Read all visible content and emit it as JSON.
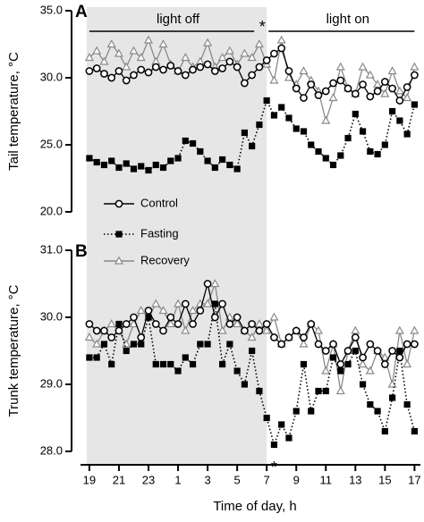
{
  "chart_data": [
    {
      "type": "line",
      "panel": "A",
      "ylabel": "Tail temperature, °C",
      "dark_period": {
        "label": "light off",
        "x": [
          19,
          31
        ]
      },
      "light_period": {
        "label": "light on",
        "x": [
          31,
          41
        ]
      },
      "annotations": [
        {
          "text": "*",
          "x": 30.7,
          "y": 34
        }
      ],
      "xlim": [
        18.4,
        41.4
      ],
      "ylim": [
        20,
        35
      ],
      "yticks": [
        {
          "value": 20,
          "label": "20.0"
        },
        {
          "value": 25,
          "label": "25.0"
        },
        {
          "value": 30,
          "label": "30.0"
        },
        {
          "value": 35,
          "label": "35.0"
        }
      ],
      "legend": "lower-left",
      "x": [
        19,
        19.5,
        20,
        20.5,
        21,
        21.5,
        22,
        22.5,
        23,
        23.5,
        24,
        24.5,
        25,
        25.5,
        26,
        26.5,
        27,
        27.5,
        28,
        28.5,
        29,
        29.5,
        30,
        30.5,
        31,
        31.5,
        32,
        32.5,
        33,
        33.5,
        34,
        34.5,
        35,
        35.5,
        36,
        36.5,
        37,
        37.5,
        38,
        38.5,
        39,
        39.5,
        40,
        40.5,
        41
      ],
      "series": [
        {
          "name": "Recovery",
          "color": "#8a8a8a",
          "marker": "triangle",
          "line": "solid",
          "values": [
            31.5,
            32.0,
            31.2,
            32.5,
            31.8,
            30.8,
            32.0,
            31.5,
            32.8,
            31.2,
            32.5,
            31.0,
            30.5,
            31.5,
            30.8,
            31.2,
            32.6,
            30.8,
            31.5,
            32.0,
            31.0,
            31.8,
            31.5,
            32.5,
            31.0,
            29.8,
            32.8,
            30.0,
            29.5,
            30.5,
            29.8,
            29.0,
            26.8,
            28.5,
            30.8,
            29.2,
            28.8,
            30.8,
            30.2,
            29.5,
            28.8,
            30.5,
            29.0,
            28.5,
            30.8
          ]
        },
        {
          "name": "Fasting",
          "color": "#000000",
          "marker": "square",
          "line": "dotted",
          "values": [
            24.0,
            23.7,
            23.5,
            23.8,
            23.3,
            23.6,
            23.2,
            23.4,
            23.1,
            23.5,
            23.3,
            23.8,
            24.0,
            25.3,
            25.1,
            24.5,
            23.8,
            23.3,
            23.9,
            23.5,
            23.2,
            25.9,
            24.9,
            26.5,
            28.3,
            27.2,
            27.8,
            27.0,
            26.2,
            26.0,
            25.0,
            24.5,
            24.0,
            23.5,
            24.2,
            25.5,
            27.3,
            26.0,
            24.5,
            24.3,
            25.0,
            27.5,
            26.8,
            25.8,
            28.0
          ]
        },
        {
          "name": "Control",
          "color": "#000000",
          "marker": "circle",
          "line": "solid",
          "values": [
            30.5,
            30.7,
            30.3,
            30.0,
            30.5,
            29.8,
            30.2,
            30.6,
            30.4,
            30.8,
            30.6,
            30.9,
            30.5,
            30.2,
            30.6,
            30.8,
            31.0,
            30.5,
            30.7,
            31.2,
            30.8,
            29.6,
            30.2,
            30.8,
            31.3,
            31.8,
            32.2,
            30.5,
            29.2,
            28.5,
            29.5,
            28.7,
            29.0,
            29.6,
            29.8,
            29.2,
            28.8,
            29.5,
            28.6,
            29.0,
            29.7,
            29.2,
            28.3,
            29.3,
            30.2
          ]
        }
      ]
    },
    {
      "type": "line",
      "panel": "B",
      "ylabel": "Trunk temperature, °C",
      "xlabel": "Time of day, h",
      "dark_period": {
        "x": [
          19,
          31
        ]
      },
      "annotations": [
        {
          "text": "*",
          "x": [
            30.1,
            32.9
          ],
          "y": 27.8
        }
      ],
      "xlim": [
        18.4,
        41.4
      ],
      "ylim": [
        28,
        31
      ],
      "xticks": [
        19,
        21,
        23,
        {
          "value": 25,
          "label": "1"
        },
        {
          "value": 27,
          "label": "3"
        },
        {
          "value": 29,
          "label": "5"
        },
        {
          "value": 31,
          "label": "7"
        },
        {
          "value": 33,
          "label": "9"
        },
        {
          "value": 35,
          "label": "11"
        },
        {
          "value": 37,
          "label": "13"
        },
        {
          "value": 39,
          "label": "15"
        },
        {
          "value": 41,
          "label": "17"
        }
      ],
      "yticks": [
        {
          "value": 28,
          "label": "28.0"
        },
        {
          "value": 29,
          "label": "29.0"
        },
        {
          "value": 30,
          "label": "30.0"
        },
        {
          "value": 31,
          "label": "31.0"
        }
      ],
      "x": [
        19,
        19.5,
        20,
        20.5,
        21,
        21.5,
        22,
        22.5,
        23,
        23.5,
        24,
        24.5,
        25,
        25.5,
        26,
        26.5,
        27,
        27.5,
        28,
        28.5,
        29,
        29.5,
        30,
        30.5,
        31,
        31.5,
        32,
        32.5,
        33,
        33.5,
        34,
        34.5,
        35,
        35.5,
        36,
        36.5,
        37,
        37.5,
        38,
        38.5,
        39,
        39.5,
        40,
        40.5,
        41
      ],
      "series": [
        {
          "color": "#8a8a8a",
          "marker": "triangle",
          "line": "solid",
          "values": [
            29.7,
            29.6,
            29.8,
            29.9,
            29.8,
            29.6,
            29.9,
            30.1,
            30.0,
            30.2,
            30.1,
            29.9,
            30.2,
            29.8,
            30.1,
            30.2,
            30.2,
            30.5,
            29.8,
            30.0,
            29.9,
            29.8,
            29.7,
            29.9,
            29.8,
            30.0,
            29.6,
            29.7,
            29.8,
            29.6,
            29.9,
            29.8,
            29.2,
            29.6,
            28.9,
            29.5,
            29.8,
            29.3,
            29.2,
            29.5,
            29.4,
            29.0,
            29.8,
            29.3,
            29.8
          ]
        },
        {
          "color": "#000000",
          "marker": "square",
          "line": "dotted",
          "values": [
            29.4,
            29.4,
            29.6,
            29.3,
            29.9,
            29.5,
            29.6,
            29.6,
            30.0,
            29.3,
            29.3,
            29.3,
            29.2,
            29.4,
            29.3,
            29.6,
            29.6,
            30.2,
            29.3,
            29.6,
            29.2,
            29.0,
            29.5,
            28.9,
            28.5,
            28.1,
            28.4,
            28.2,
            28.6,
            29.3,
            28.6,
            28.9,
            28.9,
            29.4,
            29.2,
            29.3,
            29.5,
            29.0,
            28.7,
            28.6,
            28.3,
            28.8,
            29.5,
            28.7,
            28.3
          ]
        },
        {
          "color": "#000000",
          "marker": "circle",
          "line": "solid",
          "values": [
            29.9,
            29.8,
            29.8,
            29.7,
            29.8,
            29.9,
            30.0,
            29.7,
            30.1,
            29.9,
            29.8,
            30.0,
            29.9,
            30.2,
            29.9,
            30.1,
            30.5,
            30.0,
            30.2,
            29.9,
            30.0,
            29.8,
            29.9,
            29.8,
            29.9,
            29.7,
            29.6,
            29.7,
            29.8,
            29.7,
            29.9,
            29.6,
            29.5,
            29.6,
            29.3,
            29.5,
            29.7,
            29.4,
            29.6,
            29.5,
            29.3,
            29.5,
            29.4,
            29.6,
            29.6
          ]
        }
      ]
    }
  ]
}
